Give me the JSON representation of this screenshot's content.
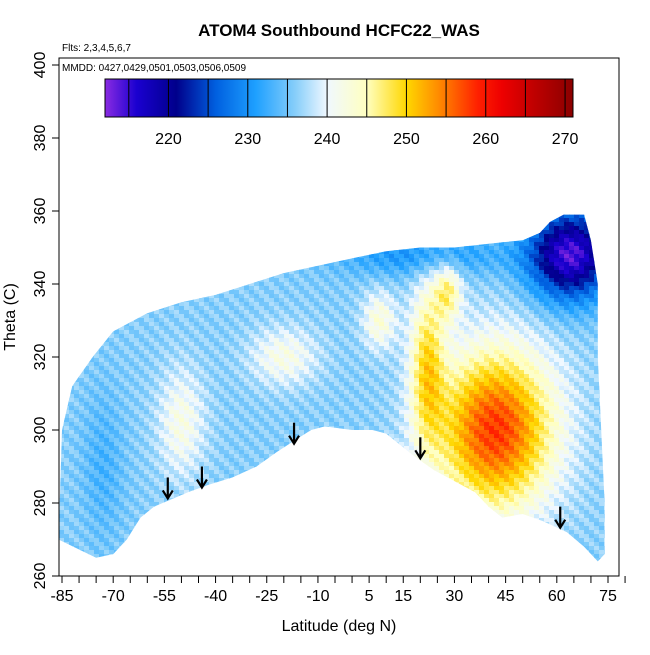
{
  "chart_data": {
    "type": "heatmap",
    "title": "ATOM4 Southbound HCFC22_WAS",
    "flights_note": "Flts: 2,3,4,5,6,7",
    "dates_note": "MMDD: 0427,0429,0501,0503,0506,0509",
    "xlabel": "Latitude (deg N)",
    "ylabel": "Theta (C)",
    "xlim": [
      -88,
      86
    ],
    "ylim": [
      260,
      405
    ],
    "x_ticks": [
      -85,
      -70,
      -55,
      -40,
      -25,
      -10,
      5,
      15,
      30,
      45,
      60,
      75
    ],
    "x_minor_ticks": [
      -80,
      -75,
      -65,
      -60,
      -50,
      -45,
      -35,
      -30,
      -20,
      -15,
      -5,
      0,
      10,
      20,
      25,
      35,
      40,
      50,
      55,
      65,
      70,
      80
    ],
    "y_ticks": [
      260,
      280,
      300,
      320,
      340,
      360,
      380,
      400
    ],
    "colorbar": {
      "range": [
        212,
        271
      ],
      "ticks": [
        220,
        230,
        240,
        250,
        260,
        270
      ],
      "stops": [
        {
          "value": 212,
          "color": "#8a2be2"
        },
        {
          "value": 216,
          "color": "#1a00d0"
        },
        {
          "value": 221,
          "color": "#00008b"
        },
        {
          "value": 226,
          "color": "#0060e0"
        },
        {
          "value": 231,
          "color": "#1ea0ff"
        },
        {
          "value": 236,
          "color": "#87cefa"
        },
        {
          "value": 240,
          "color": "#f0f8ff"
        },
        {
          "value": 245,
          "color": "#ffffc0"
        },
        {
          "value": 250,
          "color": "#ffd700"
        },
        {
          "value": 254,
          "color": "#ff8c00"
        },
        {
          "value": 259,
          "color": "#ff2000"
        },
        {
          "value": 262,
          "color": "#ee0000"
        },
        {
          "value": 266,
          "color": "#c00000"
        },
        {
          "value": 271,
          "color": "#8b0000"
        }
      ]
    },
    "lower_boundary": [
      {
        "lat": -75,
        "theta": 265
      },
      {
        "lat": -70,
        "theta": 266
      },
      {
        "lat": -66,
        "theta": 270
      },
      {
        "lat": -62,
        "theta": 276
      },
      {
        "lat": -58,
        "theta": 279
      },
      {
        "lat": -53,
        "theta": 281
      },
      {
        "lat": -48,
        "theta": 283
      },
      {
        "lat": -42,
        "theta": 285
      },
      {
        "lat": -35,
        "theta": 287
      },
      {
        "lat": -28,
        "theta": 290
      },
      {
        "lat": -22,
        "theta": 294
      },
      {
        "lat": -17,
        "theta": 297
      },
      {
        "lat": -12,
        "theta": 300
      },
      {
        "lat": -8,
        "theta": 301
      },
      {
        "lat": 0,
        "theta": 300
      },
      {
        "lat": 6,
        "theta": 300
      },
      {
        "lat": 10,
        "theta": 299
      },
      {
        "lat": 14,
        "theta": 296
      },
      {
        "lat": 18,
        "theta": 293
      },
      {
        "lat": 24,
        "theta": 289
      },
      {
        "lat": 30,
        "theta": 286
      },
      {
        "lat": 36,
        "theta": 283
      },
      {
        "lat": 40,
        "theta": 279
      },
      {
        "lat": 44,
        "theta": 276
      },
      {
        "lat": 50,
        "theta": 277
      },
      {
        "lat": 56,
        "theta": 275
      },
      {
        "lat": 63,
        "theta": 272
      },
      {
        "lat": 68,
        "theta": 268
      },
      {
        "lat": 72,
        "theta": 264
      }
    ],
    "upper_boundary": [
      {
        "lat": -86,
        "theta": 270
      },
      {
        "lat": -85,
        "theta": 300
      },
      {
        "lat": -82,
        "theta": 312
      },
      {
        "lat": -76,
        "theta": 320
      },
      {
        "lat": -70,
        "theta": 327
      },
      {
        "lat": -60,
        "theta": 332
      },
      {
        "lat": -50,
        "theta": 335
      },
      {
        "lat": -40,
        "theta": 337
      },
      {
        "lat": -30,
        "theta": 340
      },
      {
        "lat": -20,
        "theta": 343
      },
      {
        "lat": -10,
        "theta": 345
      },
      {
        "lat": 0,
        "theta": 347
      },
      {
        "lat": 10,
        "theta": 349
      },
      {
        "lat": 20,
        "theta": 350
      },
      {
        "lat": 30,
        "theta": 350
      },
      {
        "lat": 40,
        "theta": 351
      },
      {
        "lat": 50,
        "theta": 352
      },
      {
        "lat": 55,
        "theta": 354
      },
      {
        "lat": 58,
        "theta": 357
      },
      {
        "lat": 62,
        "theta": 359
      },
      {
        "lat": 68,
        "theta": 359
      },
      {
        "lat": 70,
        "theta": 352
      },
      {
        "lat": 72,
        "theta": 340
      },
      {
        "lat": 72,
        "theta": 320
      },
      {
        "lat": 73,
        "theta": 300
      },
      {
        "lat": 74,
        "theta": 280
      },
      {
        "lat": 74,
        "theta": 266
      }
    ],
    "field_model": {
      "base_value": 236,
      "features": [
        {
          "lat": 42,
          "theta": 300,
          "amplitude": 22,
          "lat_width": 17,
          "theta_width": 22
        },
        {
          "lat": 22,
          "theta": 318,
          "amplitude": 12,
          "lat_width": 5,
          "theta_width": 22
        },
        {
          "lat": 28,
          "theta": 338,
          "amplitude": 10,
          "lat_width": 4,
          "theta_width": 8
        },
        {
          "lat": 64,
          "theta": 348,
          "amplitude": -22,
          "lat_width": 12,
          "theta_width": 12
        },
        {
          "lat": 20,
          "theta": 348,
          "amplitude": -6,
          "lat_width": 25,
          "theta_width": 6
        },
        {
          "lat": -50,
          "theta": 302,
          "amplitude": 6,
          "lat_width": 7,
          "theta_width": 15
        },
        {
          "lat": -20,
          "theta": 320,
          "amplitude": 6,
          "lat_width": 10,
          "theta_width": 8
        },
        {
          "lat": 8,
          "theta": 330,
          "amplitude": 7,
          "lat_width": 5,
          "theta_width": 8
        },
        {
          "lat": -73,
          "theta": 290,
          "amplitude": -3,
          "lat_width": 6,
          "theta_width": 20
        }
      ]
    },
    "arrows": [
      {
        "lat": -54,
        "theta": 287
      },
      {
        "lat": -44,
        "theta": 290
      },
      {
        "lat": -17,
        "theta": 302
      },
      {
        "lat": 20,
        "theta": 298
      },
      {
        "lat": 61,
        "theta": 279
      }
    ]
  }
}
